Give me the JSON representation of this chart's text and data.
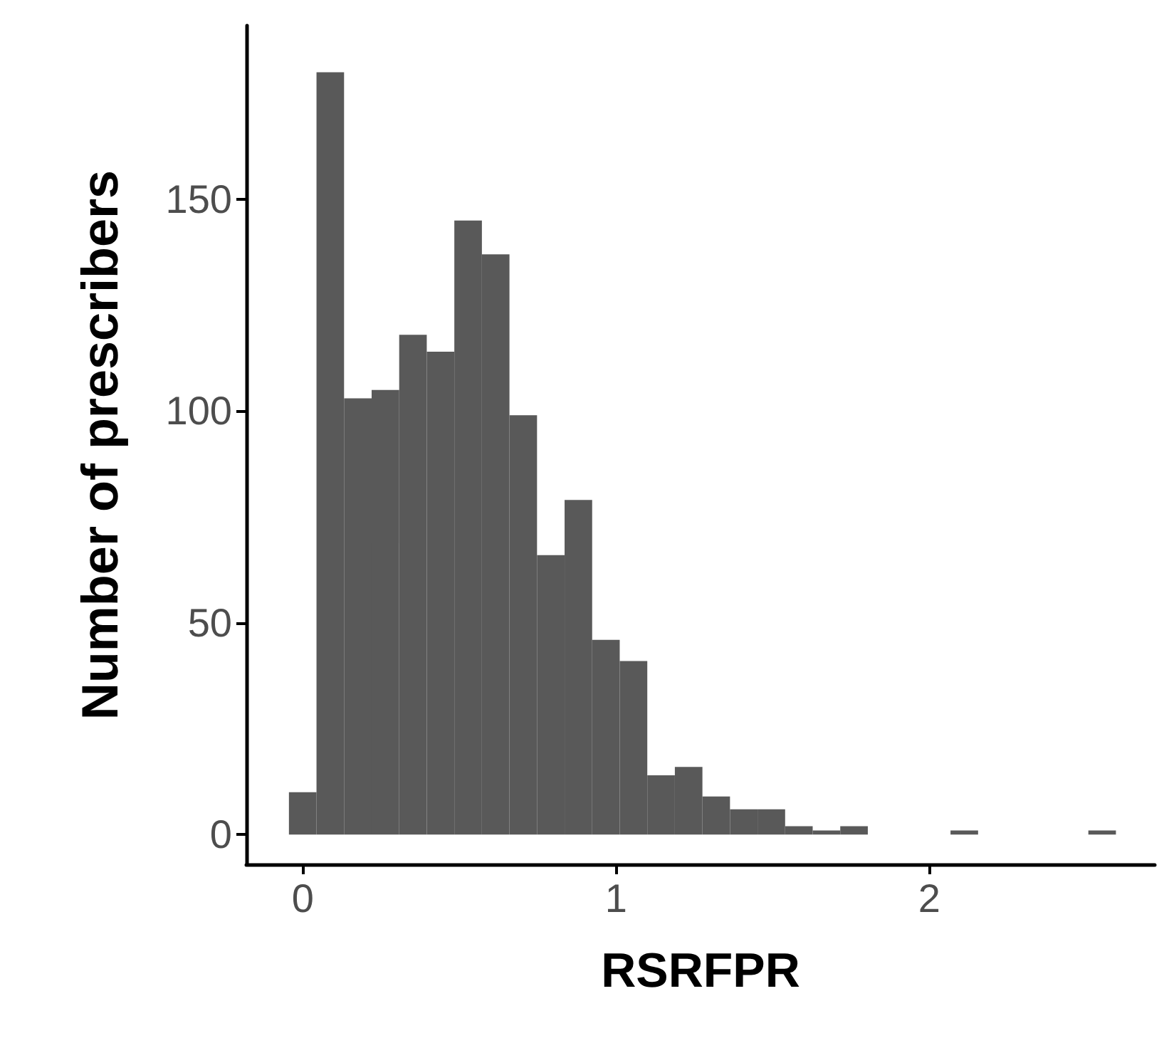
{
  "chart_data": {
    "type": "histogram",
    "xlabel": "RSRFPR",
    "ylabel": "Number of prescribers",
    "bins": [
      -0.044,
      0.044,
      0.132,
      0.22,
      0.308,
      0.396,
      0.484,
      0.572,
      0.66,
      0.748,
      0.836,
      0.924,
      1.012,
      1.1,
      1.188,
      1.276,
      1.364,
      1.452,
      1.54,
      1.628,
      1.716,
      1.804,
      1.892,
      1.98,
      2.068,
      2.156,
      2.244,
      2.332,
      2.42,
      2.508,
      2.596
    ],
    "values": [
      10,
      180,
      103,
      105,
      118,
      114,
      145,
      137,
      99,
      66,
      79,
      46,
      41,
      14,
      16,
      9,
      6,
      6,
      2,
      1,
      2,
      0,
      0,
      0,
      1,
      0,
      0,
      0,
      0,
      1
    ],
    "color": "#595959",
    "xlim": [
      -0.18,
      2.72
    ],
    "ylim": [
      -7,
      191
    ],
    "xticks": [
      0,
      1,
      2
    ],
    "yticks": [
      0,
      50,
      100,
      150
    ],
    "grid": false
  }
}
